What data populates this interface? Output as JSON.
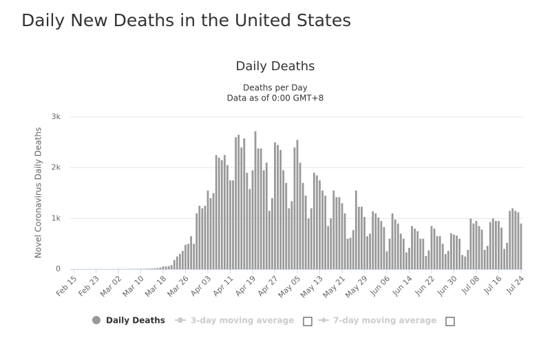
{
  "page_title": "Daily New Deaths in the United States",
  "chart_data": {
    "type": "bar",
    "title": "Daily Deaths",
    "subtitle": [
      "Deaths per Day",
      "Data as of 0:00 GMT+8"
    ],
    "y_label": "Novel Coronavirus Daily Deaths",
    "categories": [
      "Feb 15",
      null,
      null,
      null,
      null,
      null,
      null,
      null,
      "Feb 23",
      null,
      null,
      null,
      null,
      null,
      null,
      null,
      "Mar 02",
      null,
      null,
      null,
      null,
      null,
      null,
      null,
      "Mar 10",
      null,
      null,
      null,
      null,
      null,
      null,
      null,
      "Mar 18",
      null,
      null,
      null,
      null,
      null,
      null,
      null,
      "Mar 26",
      null,
      null,
      null,
      null,
      null,
      null,
      null,
      "Apr 03",
      null,
      null,
      null,
      null,
      null,
      null,
      null,
      "Apr 11",
      null,
      null,
      null,
      null,
      null,
      null,
      null,
      "Apr 19",
      null,
      null,
      null,
      null,
      null,
      null,
      null,
      "Apr 27",
      null,
      null,
      null,
      null,
      null,
      null,
      null,
      "May 05",
      null,
      null,
      null,
      null,
      null,
      null,
      null,
      "May 13",
      null,
      null,
      null,
      null,
      null,
      null,
      null,
      "May 21",
      null,
      null,
      null,
      null,
      null,
      null,
      null,
      "May 29",
      null,
      null,
      null,
      null,
      null,
      null,
      null,
      "Jun 06",
      null,
      null,
      null,
      null,
      null,
      null,
      null,
      "Jun 14",
      null,
      null,
      null,
      null,
      null,
      null,
      null,
      "Jun 22",
      null,
      null,
      null,
      null,
      null,
      null,
      null,
      "Jun 30",
      null,
      null,
      null,
      null,
      null,
      null,
      null,
      "Jul 08",
      null,
      null,
      null,
      null,
      null,
      null,
      null,
      "Jul 16",
      null,
      null,
      null,
      null,
      null,
      null,
      null,
      "Jul 24"
    ],
    "series": [
      {
        "name": "Daily Deaths",
        "color": "#999999",
        "values": [
          0,
          0,
          0,
          0,
          0,
          0,
          0,
          0,
          0,
          0,
          0,
          0,
          0,
          0,
          1,
          0,
          5,
          2,
          1,
          1,
          3,
          4,
          4,
          5,
          8,
          7,
          10,
          10,
          13,
          17,
          23,
          31,
          53,
          53,
          60,
          80,
          180,
          250,
          300,
          360,
          480,
          500,
          650,
          500,
          1100,
          1250,
          1200,
          1250,
          1550,
          1400,
          1500,
          2250,
          2200,
          2150,
          2250,
          2050,
          1750,
          1750,
          2600,
          2650,
          2400,
          2580,
          1900,
          1580,
          1950,
          2720,
          2380,
          2380,
          1950,
          2100,
          1150,
          1400,
          2500,
          2450,
          2350,
          1950,
          1700,
          1200,
          1340,
          2400,
          2550,
          2100,
          1700,
          1450,
          1000,
          1200,
          1900,
          1850,
          1750,
          1550,
          1450,
          850,
          1000,
          1550,
          1420,
          1420,
          1300,
          1100,
          600,
          620,
          770,
          1550,
          1230,
          1230,
          1030,
          650,
          700,
          1140,
          1100,
          1020,
          950,
          830,
          350,
          600,
          1100,
          980,
          900,
          700,
          600,
          330,
          420,
          850,
          800,
          750,
          600,
          600,
          260,
          370,
          850,
          800,
          650,
          650,
          500,
          300,
          360,
          710,
          680,
          660,
          600,
          280,
          250,
          380,
          1000,
          900,
          950,
          850,
          780,
          380,
          460,
          930,
          1000,
          950,
          950,
          820,
          400,
          520,
          1150,
          1200,
          1150,
          1120,
          900
        ]
      }
    ],
    "legend": [
      "3-day moving average",
      "7-day moving average"
    ],
    "ylim": [
      0,
      3000
    ],
    "yticks": [
      0,
      {
        "value": 1000,
        "label": "1k"
      },
      {
        "value": 2000,
        "label": "2k"
      },
      {
        "value": 3000,
        "label": "3k"
      }
    ],
    "grid": true
  }
}
